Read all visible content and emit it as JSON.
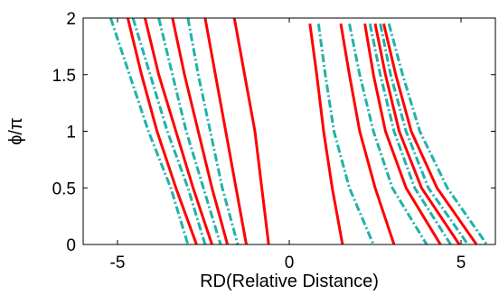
{
  "chart_data": {
    "type": "line",
    "title": "",
    "xlabel": "RD(Relative Distance)",
    "ylabel": "ϕ/π",
    "xlim": [
      -6,
      6
    ],
    "ylim": [
      0,
      2
    ],
    "xticks": [
      -5,
      0,
      5
    ],
    "xtick_labels": [
      "-5",
      "0",
      "5"
    ],
    "yticks": [
      0,
      0.5,
      1,
      1.5,
      2
    ],
    "ytick_labels": [
      "0",
      "0.5",
      "1",
      "1.5",
      "2"
    ],
    "grid": false,
    "legend": "none",
    "series": [
      {
        "color": "#ff0000",
        "style": "solid",
        "points": [
          [
            -4.7,
            2.0
          ],
          [
            -4.3,
            1.5
          ],
          [
            -3.85,
            1.0
          ],
          [
            -3.3,
            0.5
          ],
          [
            -2.7,
            0.0
          ]
        ]
      },
      {
        "color": "#ff0000",
        "style": "solid",
        "points": [
          [
            -4.2,
            2.0
          ],
          [
            -3.8,
            1.5
          ],
          [
            -3.3,
            1.0
          ],
          [
            -2.8,
            0.5
          ],
          [
            -2.25,
            0.0
          ]
        ]
      },
      {
        "color": "#ff0000",
        "style": "solid",
        "points": [
          [
            -3.4,
            2.0
          ],
          [
            -3.05,
            1.5
          ],
          [
            -2.65,
            1.0
          ],
          [
            -2.25,
            0.5
          ],
          [
            -1.8,
            0.0
          ]
        ]
      },
      {
        "color": "#ff0000",
        "style": "solid",
        "points": [
          [
            -2.45,
            2.0
          ],
          [
            -2.15,
            1.5
          ],
          [
            -1.85,
            1.0
          ],
          [
            -1.55,
            0.5
          ],
          [
            -1.25,
            0.0
          ]
        ]
      },
      {
        "color": "#ff0000",
        "style": "solid",
        "points": [
          [
            -1.6,
            2.0
          ],
          [
            -1.3,
            1.5
          ],
          [
            -1.0,
            1.0
          ],
          [
            -0.8,
            0.5
          ],
          [
            -0.6,
            0.0
          ]
        ]
      },
      {
        "color": "#20b2aa",
        "style": "dashdot",
        "points": [
          [
            -5.2,
            2.0
          ],
          [
            -4.65,
            1.5
          ],
          [
            -4.1,
            1.0
          ],
          [
            -3.45,
            0.5
          ],
          [
            -2.95,
            0.0
          ]
        ]
      },
      {
        "color": "#20b2aa",
        "style": "dashdot",
        "points": [
          [
            -4.55,
            2.0
          ],
          [
            -4.05,
            1.5
          ],
          [
            -3.55,
            1.0
          ],
          [
            -2.95,
            0.5
          ],
          [
            -2.45,
            0.0
          ]
        ]
      },
      {
        "color": "#20b2aa",
        "style": "dashdot",
        "points": [
          [
            -3.8,
            2.0
          ],
          [
            -3.4,
            1.5
          ],
          [
            -3.0,
            1.0
          ],
          [
            -2.5,
            0.5
          ],
          [
            -2.0,
            0.0
          ]
        ]
      },
      {
        "color": "#20b2aa",
        "style": "dashdot",
        "points": [
          [
            -2.95,
            2.0
          ],
          [
            -2.65,
            1.5
          ],
          [
            -2.3,
            1.0
          ],
          [
            -1.95,
            0.5
          ],
          [
            -1.5,
            0.0
          ]
        ]
      },
      {
        "color": "#ff0000",
        "style": "solid",
        "points": [
          [
            0.6,
            1.95
          ],
          [
            0.8,
            1.5
          ],
          [
            1.0,
            1.0
          ],
          [
            1.25,
            0.5
          ],
          [
            1.55,
            0.0
          ]
        ]
      },
      {
        "color": "#ff0000",
        "style": "solid",
        "points": [
          [
            1.5,
            1.95
          ],
          [
            1.75,
            1.5
          ],
          [
            2.05,
            1.0
          ],
          [
            2.5,
            0.5
          ],
          [
            3.05,
            0.0
          ]
        ]
      },
      {
        "color": "#ff0000",
        "style": "solid",
        "points": [
          [
            2.2,
            1.95
          ],
          [
            2.45,
            1.5
          ],
          [
            2.8,
            1.0
          ],
          [
            3.4,
            0.5
          ],
          [
            4.4,
            0.0
          ]
        ]
      },
      {
        "color": "#ff0000",
        "style": "solid",
        "points": [
          [
            2.5,
            1.95
          ],
          [
            2.8,
            1.5
          ],
          [
            3.2,
            1.0
          ],
          [
            3.85,
            0.5
          ],
          [
            4.95,
            0.0
          ]
        ]
      },
      {
        "color": "#ff0000",
        "style": "solid",
        "points": [
          [
            2.75,
            1.95
          ],
          [
            3.1,
            1.5
          ],
          [
            3.55,
            1.0
          ],
          [
            4.3,
            0.5
          ],
          [
            5.45,
            0.0
          ]
        ]
      },
      {
        "color": "#20b2aa",
        "style": "dashdot",
        "points": [
          [
            0.85,
            1.95
          ],
          [
            1.05,
            1.5
          ],
          [
            1.3,
            1.0
          ],
          [
            1.75,
            0.5
          ],
          [
            2.45,
            0.0
          ]
        ]
      },
      {
        "color": "#20b2aa",
        "style": "dashdot",
        "points": [
          [
            1.75,
            1.95
          ],
          [
            2.05,
            1.5
          ],
          [
            2.45,
            1.0
          ],
          [
            3.0,
            0.5
          ],
          [
            4.0,
            0.0
          ]
        ]
      },
      {
        "color": "#20b2aa",
        "style": "dashdot",
        "points": [
          [
            2.35,
            1.95
          ],
          [
            2.65,
            1.5
          ],
          [
            3.05,
            1.0
          ],
          [
            3.65,
            0.5
          ],
          [
            4.7,
            0.0
          ]
        ]
      },
      {
        "color": "#20b2aa",
        "style": "dashdot",
        "points": [
          [
            2.65,
            1.95
          ],
          [
            2.95,
            1.5
          ],
          [
            3.4,
            1.0
          ],
          [
            4.05,
            0.5
          ],
          [
            5.2,
            0.0
          ]
        ]
      },
      {
        "color": "#20b2aa",
        "style": "dashdot",
        "points": [
          [
            2.9,
            1.95
          ],
          [
            3.3,
            1.5
          ],
          [
            3.8,
            1.0
          ],
          [
            4.6,
            0.5
          ],
          [
            5.75,
            0.0
          ]
        ]
      }
    ]
  }
}
